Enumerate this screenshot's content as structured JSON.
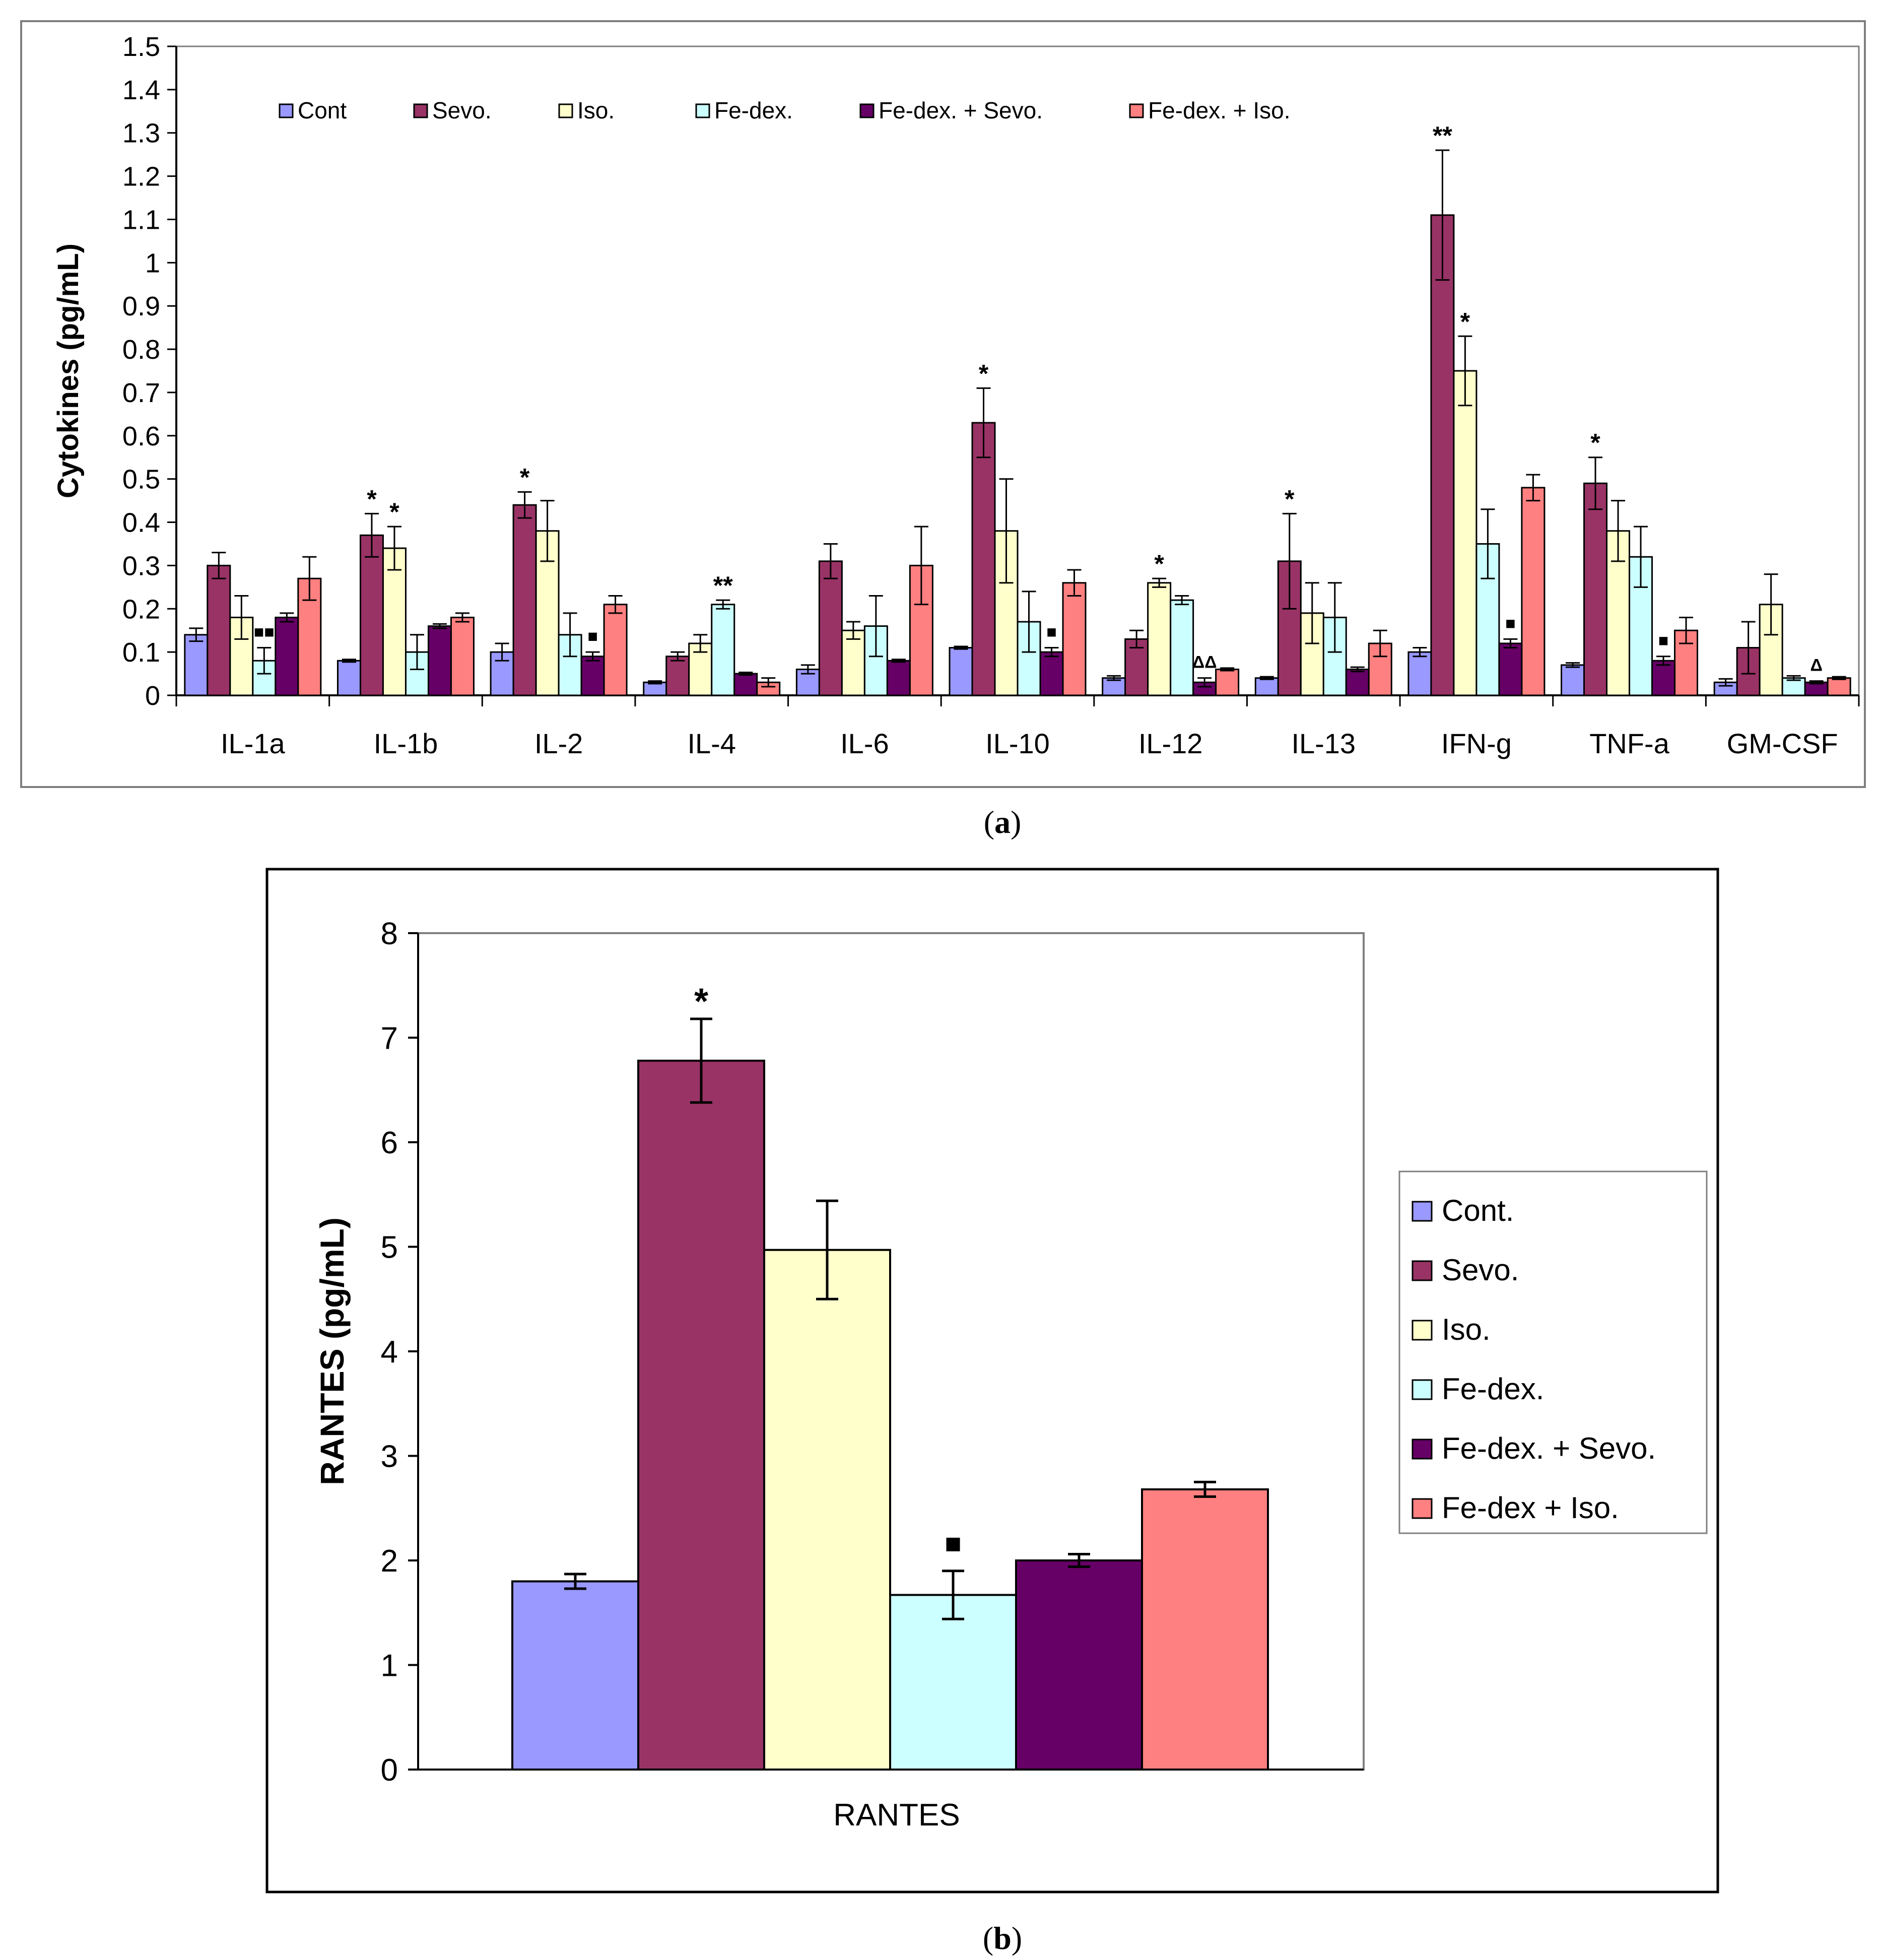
{
  "panel_a": {
    "caption": "a",
    "ylabel": "Cytokines (pg/mL)"
  },
  "panel_b": {
    "caption": "b",
    "ylabel": "RANTES (pg/mL)",
    "xlabel": "RANTES"
  },
  "colors": {
    "Cont": "#9999ff",
    "Sevo": "#993366",
    "Iso": "#ffffcc",
    "Fe-dex": "#ccffff",
    "Fe-dex + Sevo": "#660066",
    "Fe-dex + Iso": "#ff8080"
  },
  "chart_data": [
    {
      "type": "bar",
      "legend": [
        "Cont",
        "Sevo.",
        "Iso.",
        "Fe-dex.",
        "Fe-dex. + Sevo.",
        "Fe-dex. + Iso."
      ],
      "legend_position": "top",
      "ylabel": "Cytokines (pg/mL)",
      "ylim": [
        0,
        1.5
      ],
      "yticks": [
        "0",
        "0.1",
        "0.2",
        "0.3",
        "0.4",
        "0.5",
        "0.6",
        "0.7",
        "0.8",
        "0.9",
        "1",
        "1.1",
        "1.2",
        "1.3",
        "1.4",
        "1.5"
      ],
      "categories": [
        "IL-1a",
        "IL-1b",
        "IL-2",
        "IL-4",
        "IL-6",
        "IL-10",
        "IL-12",
        "IL-13",
        "IFN-g",
        "TNF-a",
        "GM-CSF"
      ],
      "series": [
        {
          "name": "Cont",
          "values": [
            0.14,
            0.08,
            0.1,
            0.03,
            0.06,
            0.11,
            0.04,
            0.04,
            0.1,
            0.07,
            0.03
          ],
          "errors": [
            0.015,
            0.003,
            0.02,
            0.003,
            0.01,
            0.003,
            0.005,
            0.003,
            0.01,
            0.005,
            0.008
          ]
        },
        {
          "name": "Sevo.",
          "values": [
            0.3,
            0.37,
            0.44,
            0.09,
            0.31,
            0.63,
            0.13,
            0.31,
            1.11,
            0.49,
            0.11
          ],
          "errors": [
            0.03,
            0.05,
            0.03,
            0.01,
            0.04,
            0.08,
            0.02,
            0.11,
            0.15,
            0.06,
            0.06
          ]
        },
        {
          "name": "Iso.",
          "values": [
            0.18,
            0.34,
            0.38,
            0.12,
            0.15,
            0.38,
            0.26,
            0.19,
            0.75,
            0.38,
            0.21
          ],
          "errors": [
            0.05,
            0.05,
            0.07,
            0.02,
            0.02,
            0.12,
            0.01,
            0.07,
            0.08,
            0.07,
            0.07
          ]
        },
        {
          "name": "Fe-dex.",
          "values": [
            0.08,
            0.1,
            0.14,
            0.21,
            0.16,
            0.17,
            0.22,
            0.18,
            0.35,
            0.32,
            0.04
          ],
          "errors": [
            0.03,
            0.04,
            0.05,
            0.01,
            0.07,
            0.07,
            0.01,
            0.08,
            0.08,
            0.07,
            0.005
          ]
        },
        {
          "name": "Fe-dex. + Sevo.",
          "values": [
            0.18,
            0.16,
            0.09,
            0.05,
            0.08,
            0.1,
            0.03,
            0.06,
            0.12,
            0.08,
            0.03
          ],
          "errors": [
            0.01,
            0.005,
            0.01,
            0.003,
            0.003,
            0.01,
            0.01,
            0.005,
            0.01,
            0.01,
            0.003
          ]
        },
        {
          "name": "Fe-dex. + Iso.",
          "values": [
            0.27,
            0.18,
            0.21,
            0.03,
            0.3,
            0.26,
            0.06,
            0.12,
            0.48,
            0.15,
            0.04
          ],
          "errors": [
            0.05,
            0.01,
            0.02,
            0.01,
            0.09,
            0.03,
            0.003,
            0.03,
            0.03,
            0.03,
            0.003
          ]
        }
      ],
      "annotations": [
        {
          "category": "IL-1a",
          "series": "Fe-dex.",
          "text": "■■"
        },
        {
          "category": "IL-1b",
          "series": "Sevo.",
          "text": "*"
        },
        {
          "category": "IL-1b",
          "series": "Iso.",
          "text": "*"
        },
        {
          "category": "IL-2",
          "series": "Sevo.",
          "text": "*"
        },
        {
          "category": "IL-2",
          "series": "Fe-dex. + Sevo.",
          "text": "■"
        },
        {
          "category": "IL-4",
          "series": "Fe-dex.",
          "text": "**"
        },
        {
          "category": "IL-10",
          "series": "Sevo.",
          "text": "*"
        },
        {
          "category": "IL-10",
          "series": "Fe-dex. + Sevo.",
          "text": "■"
        },
        {
          "category": "IL-12",
          "series": "Iso.",
          "text": "*"
        },
        {
          "category": "IL-12",
          "series": "Fe-dex. + Sevo.",
          "text": "ΔΔ"
        },
        {
          "category": "IL-13",
          "series": "Sevo.",
          "text": "*"
        },
        {
          "category": "IFN-g",
          "series": "Sevo.",
          "text": "**"
        },
        {
          "category": "IFN-g",
          "series": "Iso.",
          "text": "*"
        },
        {
          "category": "IFN-g",
          "series": "Fe-dex. + Sevo.",
          "text": "■"
        },
        {
          "category": "TNF-a",
          "series": "Sevo.",
          "text": "*"
        },
        {
          "category": "TNF-a",
          "series": "Fe-dex. + Sevo.",
          "text": "■"
        },
        {
          "category": "GM-CSF",
          "series": "Fe-dex. + Sevo.",
          "text": "Δ"
        }
      ],
      "grid": false
    },
    {
      "type": "bar",
      "legend": [
        "Cont.",
        "Sevo.",
        "Iso.",
        "Fe-dex.",
        "Fe-dex. + Sevo.",
        "Fe-dex + Iso."
      ],
      "legend_position": "right",
      "xlabel": "RANTES",
      "ylabel": "RANTES (pg/mL)",
      "ylim": [
        0,
        8
      ],
      "yticks": [
        "0",
        "1",
        "2",
        "3",
        "4",
        "5",
        "6",
        "7",
        "8"
      ],
      "categories": [
        "RANTES"
      ],
      "series": [
        {
          "name": "Cont.",
          "values": [
            1.8
          ],
          "errors": [
            0.07
          ]
        },
        {
          "name": "Sevo.",
          "values": [
            6.78
          ],
          "errors": [
            0.4
          ]
        },
        {
          "name": "Iso.",
          "values": [
            4.97
          ],
          "errors": [
            0.47
          ]
        },
        {
          "name": "Fe-dex.",
          "values": [
            1.67
          ],
          "errors": [
            0.23
          ]
        },
        {
          "name": "Fe-dex. + Sevo.",
          "values": [
            2.0
          ],
          "errors": [
            0.06
          ]
        },
        {
          "name": "Fe-dex + Iso.",
          "values": [
            2.68
          ],
          "errors": [
            0.07
          ]
        }
      ],
      "annotations": [
        {
          "category": "RANTES",
          "series": "Sevo.",
          "text": "*"
        },
        {
          "category": "RANTES",
          "series": "Fe-dex.",
          "text": "■"
        }
      ],
      "grid": false
    }
  ]
}
